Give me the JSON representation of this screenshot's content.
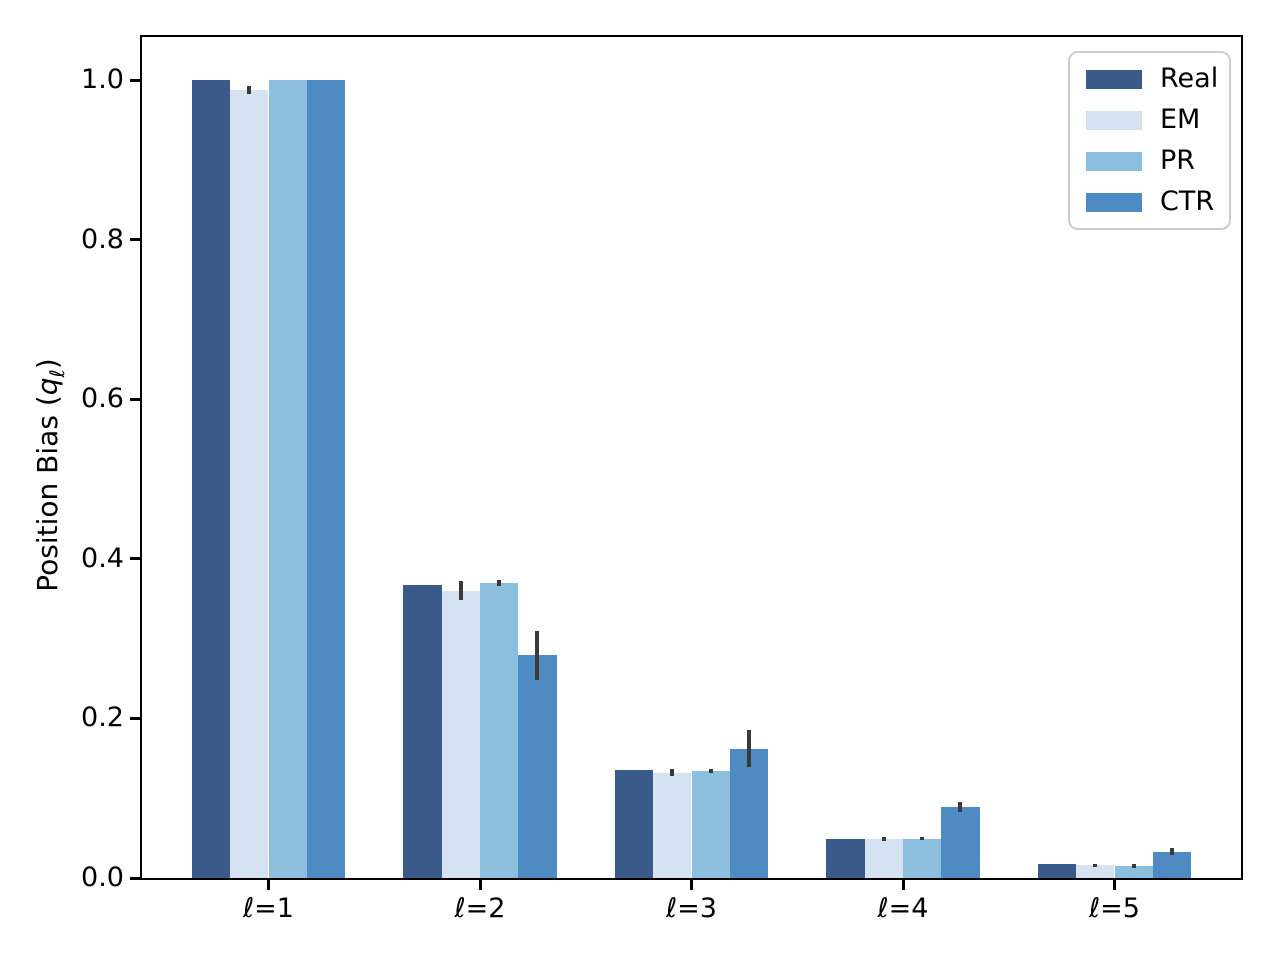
{
  "chart_data": {
    "type": "bar",
    "title": "",
    "xlabel": "",
    "ylabel": "Position Bias (qℓ)",
    "ylabel_parts": {
      "prefix": "Position Bias (",
      "var": "q",
      "sub": "ℓ",
      "suffix": ")"
    },
    "categories": [
      "ℓ=1",
      "ℓ=2",
      "ℓ=3",
      "ℓ=4",
      "ℓ=5"
    ],
    "series": [
      {
        "name": "Real",
        "color": "#3A5A89",
        "values": [
          1.0,
          0.367,
          0.135,
          0.049,
          0.017
        ],
        "errors": [
          0,
          0,
          0,
          0,
          0
        ]
      },
      {
        "name": "EM",
        "color": "#D4E2F1",
        "values": [
          0.988,
          0.36,
          0.132,
          0.049,
          0.016
        ],
        "errors": [
          0.005,
          0.012,
          0.004,
          0.003,
          0.002
        ]
      },
      {
        "name": "PR",
        "color": "#8CBEDE",
        "values": [
          1.0,
          0.37,
          0.134,
          0.049,
          0.015
        ],
        "errors": [
          0,
          0.004,
          0.002,
          0.002,
          0.002
        ]
      },
      {
        "name": "CTR",
        "color": "#4F8BC3",
        "values": [
          1.0,
          0.279,
          0.162,
          0.089,
          0.033
        ],
        "errors": [
          0,
          0.031,
          0.023,
          0.006,
          0.004
        ]
      }
    ],
    "yticks": [
      0.0,
      0.2,
      0.4,
      0.6,
      0.8,
      1.0
    ],
    "ytick_labels": [
      "0.0",
      "0.2",
      "0.4",
      "0.6",
      "0.8",
      "1.0"
    ],
    "ylim": [
      0,
      1.054
    ],
    "grid": false,
    "legend_position": "upper right",
    "error_bar_color": "#3A3A3A"
  }
}
